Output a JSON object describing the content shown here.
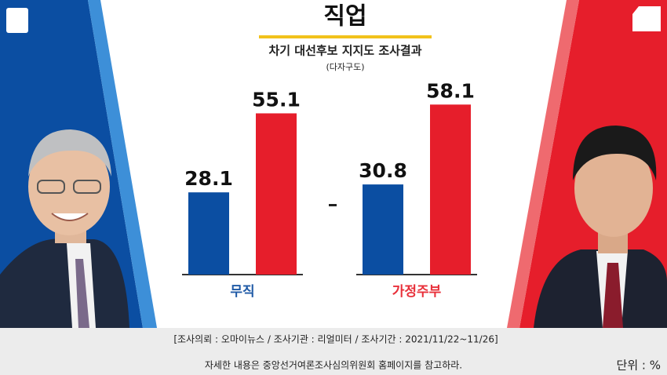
{
  "chart_data": {
    "type": "bar",
    "title": "직업",
    "subtitle": "차기 대선후보 지지도 조사결과",
    "subtitle_note": "(다자구도)",
    "categories": [
      "무직",
      "가정주부"
    ],
    "category_colors": [
      "#1f5aa6",
      "#e8303a"
    ],
    "series": [
      {
        "color": "#0b4ea2",
        "values": [
          28.1,
          30.8
        ]
      },
      {
        "color": "#e61e2b",
        "values": [
          55.1,
          58.1
        ]
      }
    ],
    "source": "[조사의뢰 : 오마이뉴스 / 조사기관 : 리얼미터 / 조사기간 : 2021/11/22~11/26]",
    "note": "자세한 내용은 중앙선거여론조사심의위원회 홈페이지를 참고하라.",
    "unit_label": "단위 : %"
  }
}
